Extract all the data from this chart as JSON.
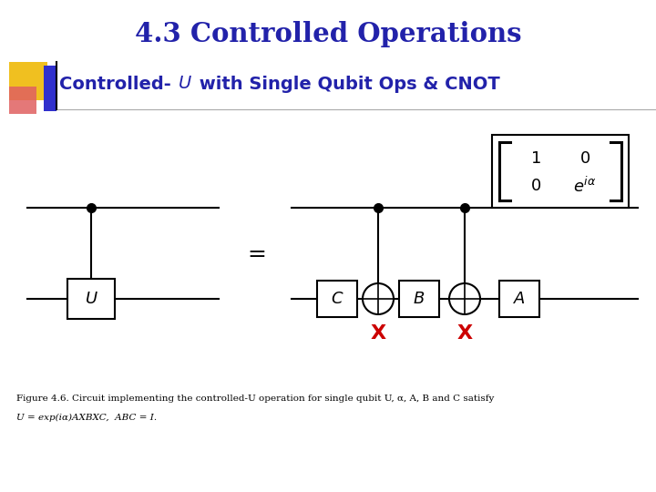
{
  "title": "4.3 Controlled Operations",
  "title_color": "#2222aa",
  "subtitle_prefix": "Controlled-",
  "subtitle_u": "U",
  "subtitle_suffix": " with Single Qubit Ops & CNOT",
  "subtitle_color": "#2222aa",
  "bg_color": "#ffffff",
  "fig_width": 7.2,
  "fig_height": 5.4,
  "dpi": 100,
  "accent_yellow": "#f0c020",
  "accent_red": "#e06060",
  "accent_blue": "#3030cc",
  "x_color": "#cc0000",
  "caption_line1": "Figure 4.6. Circuit implementing the controlled-U operation for single qubit U, α, A, B and C satisfy",
  "caption_line2": "U = exp(iα)AXBXC,  ABC = I."
}
